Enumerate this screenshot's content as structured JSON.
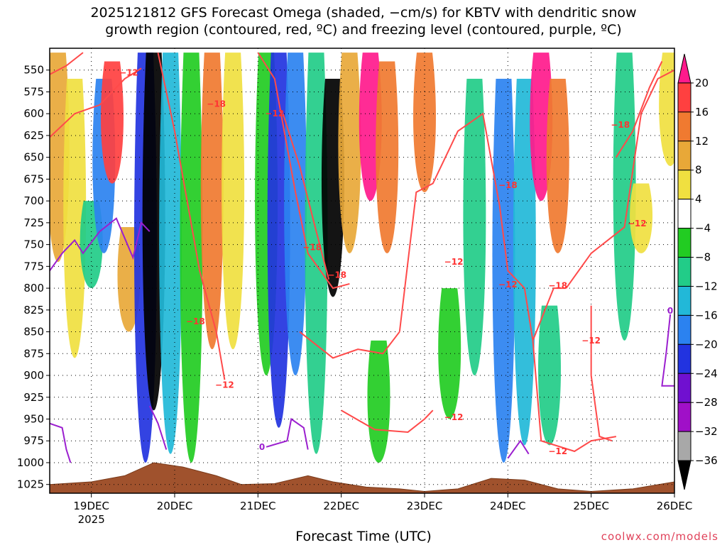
{
  "title": {
    "line1": "2025121812 GFS Forecast Omega (shaded, −cm/s) for KBTV with dendritic snow",
    "line2": "growth region (contoured, red, ºC) and freezing level (contoured, purple, ºC)"
  },
  "credit": "coolwx.com/models",
  "chart_data": {
    "type": "heatmap",
    "title": "2025121812 GFS Forecast Omega (shaded, −cm/s) for KBTV with dendritic snow growth region (contoured, red, ºC) and freezing level (contoured, purple, ºC)",
    "xlabel": "Forecast Time (UTC)",
    "x_ticks": [
      "19DEC",
      "20DEC",
      "21DEC",
      "22DEC",
      "23DEC",
      "24DEC",
      "25DEC",
      "26DEC"
    ],
    "x_tick_sublabel": "2025",
    "y_ticks": [
      550,
      575,
      600,
      625,
      650,
      675,
      700,
      725,
      750,
      775,
      800,
      825,
      850,
      875,
      900,
      925,
      950,
      975,
      1000,
      1025
    ],
    "y_range_hpa": [
      525,
      1035
    ],
    "x_range_days": [
      18.5,
      26.0
    ],
    "grid": true,
    "colorbar": {
      "labels": [
        "20",
        "16",
        "12",
        "8",
        "4",
        "−4",
        "−8",
        "−12",
        "−16",
        "−20",
        "−24",
        "−28",
        "−32",
        "−36"
      ],
      "bins": [
        {
          "color": "#ff1a8c"
        },
        {
          "color": "#ff4040"
        },
        {
          "color": "#f07a30"
        },
        {
          "color": "#e8a838"
        },
        {
          "color": "#f0e040"
        },
        {
          "color": "#ffffff"
        },
        {
          "color": "#22cc22"
        },
        {
          "color": "#22cc88"
        },
        {
          "color": "#22b8d8"
        },
        {
          "color": "#2b82f0"
        },
        {
          "color": "#2233e0"
        },
        {
          "color": "#7010d0"
        },
        {
          "color": "#a010c8"
        },
        {
          "color": "#a8a8a8"
        },
        {
          "color": "#000000"
        }
      ]
    },
    "omega_columns": [
      {
        "day": 18.6,
        "top": 530,
        "bottom": 770,
        "color": "#e8a838"
      },
      {
        "day": 18.8,
        "top": 560,
        "bottom": 880,
        "color": "#f0e040"
      },
      {
        "day": 19.0,
        "top": 700,
        "bottom": 800,
        "color": "#22cc88"
      },
      {
        "day": 19.15,
        "top": 560,
        "bottom": 760,
        "color": "#2b82f0"
      },
      {
        "day": 19.25,
        "top": 540,
        "bottom": 680,
        "color": "#ff4040"
      },
      {
        "day": 19.45,
        "top": 730,
        "bottom": 850,
        "color": "#e8a838"
      },
      {
        "day": 19.65,
        "top": 530,
        "bottom": 1000,
        "color": "#2233e0"
      },
      {
        "day": 19.75,
        "top": 530,
        "bottom": 940,
        "color": "#000000"
      },
      {
        "day": 19.95,
        "top": 530,
        "bottom": 990,
        "color": "#22b8d8"
      },
      {
        "day": 20.2,
        "top": 530,
        "bottom": 1000,
        "color": "#22cc22"
      },
      {
        "day": 20.45,
        "top": 530,
        "bottom": 870,
        "color": "#f07a30"
      },
      {
        "day": 20.7,
        "top": 530,
        "bottom": 870,
        "color": "#f0e040"
      },
      {
        "day": 21.1,
        "top": 530,
        "bottom": 900,
        "color": "#22cc22"
      },
      {
        "day": 21.25,
        "top": 530,
        "bottom": 960,
        "color": "#2233e0"
      },
      {
        "day": 21.45,
        "top": 530,
        "bottom": 900,
        "color": "#2b82f0"
      },
      {
        "day": 21.7,
        "top": 530,
        "bottom": 990,
        "color": "#22cc88"
      },
      {
        "day": 21.9,
        "top": 560,
        "bottom": 810,
        "color": "#000000"
      },
      {
        "day": 22.1,
        "top": 530,
        "bottom": 760,
        "color": "#e8a838"
      },
      {
        "day": 22.35,
        "top": 530,
        "bottom": 700,
        "color": "#ff1a8c"
      },
      {
        "day": 22.55,
        "top": 540,
        "bottom": 760,
        "color": "#f07a30"
      },
      {
        "day": 22.45,
        "top": 860,
        "bottom": 1000,
        "color": "#22cc22"
      },
      {
        "day": 23.0,
        "top": 530,
        "bottom": 690,
        "color": "#f07a30"
      },
      {
        "day": 23.3,
        "top": 800,
        "bottom": 950,
        "color": "#22cc22"
      },
      {
        "day": 23.6,
        "top": 560,
        "bottom": 900,
        "color": "#22cc88"
      },
      {
        "day": 23.95,
        "top": 560,
        "bottom": 1000,
        "color": "#2b82f0"
      },
      {
        "day": 24.2,
        "top": 560,
        "bottom": 980,
        "color": "#22b8d8"
      },
      {
        "day": 24.4,
        "top": 530,
        "bottom": 700,
        "color": "#ff1a8c"
      },
      {
        "day": 24.6,
        "top": 560,
        "bottom": 760,
        "color": "#f07a30"
      },
      {
        "day": 24.5,
        "top": 820,
        "bottom": 980,
        "color": "#22cc88"
      },
      {
        "day": 25.4,
        "top": 530,
        "bottom": 860,
        "color": "#22cc88"
      },
      {
        "day": 25.6,
        "top": 680,
        "bottom": 760,
        "color": "#f0e040"
      },
      {
        "day": 25.95,
        "top": 530,
        "bottom": 660,
        "color": "#f0e040"
      }
    ],
    "dgz_contour_labels": [
      {
        "day": 19.45,
        "p": 553,
        "text": "−12"
      },
      {
        "day": 20.5,
        "p": 589,
        "text": "−18"
      },
      {
        "day": 21.2,
        "p": 600,
        "text": "−12"
      },
      {
        "day": 21.65,
        "p": 753,
        "text": "−18"
      },
      {
        "day": 21.95,
        "p": 785,
        "text": "−18"
      },
      {
        "day": 20.25,
        "p": 838,
        "text": "−18"
      },
      {
        "day": 20.6,
        "p": 911,
        "text": "−12"
      },
      {
        "day": 23.35,
        "p": 948,
        "text": "−12"
      },
      {
        "day": 23.35,
        "p": 770,
        "text": "−12"
      },
      {
        "day": 24.0,
        "p": 796,
        "text": "−12"
      },
      {
        "day": 24.6,
        "p": 797,
        "text": "−18"
      },
      {
        "day": 25.0,
        "p": 860,
        "text": "−12"
      },
      {
        "day": 24.6,
        "p": 987,
        "text": "−12"
      },
      {
        "day": 25.35,
        "p": 613,
        "text": "−18"
      },
      {
        "day": 24.0,
        "p": 682,
        "text": "−18"
      },
      {
        "day": 25.55,
        "p": 726,
        "text": "−12"
      }
    ],
    "freezing_contour_labels": [
      {
        "day": 21.1,
        "p": 982,
        "text": "0"
      },
      {
        "day": 26.0,
        "p": 826,
        "text": "0"
      }
    ]
  }
}
